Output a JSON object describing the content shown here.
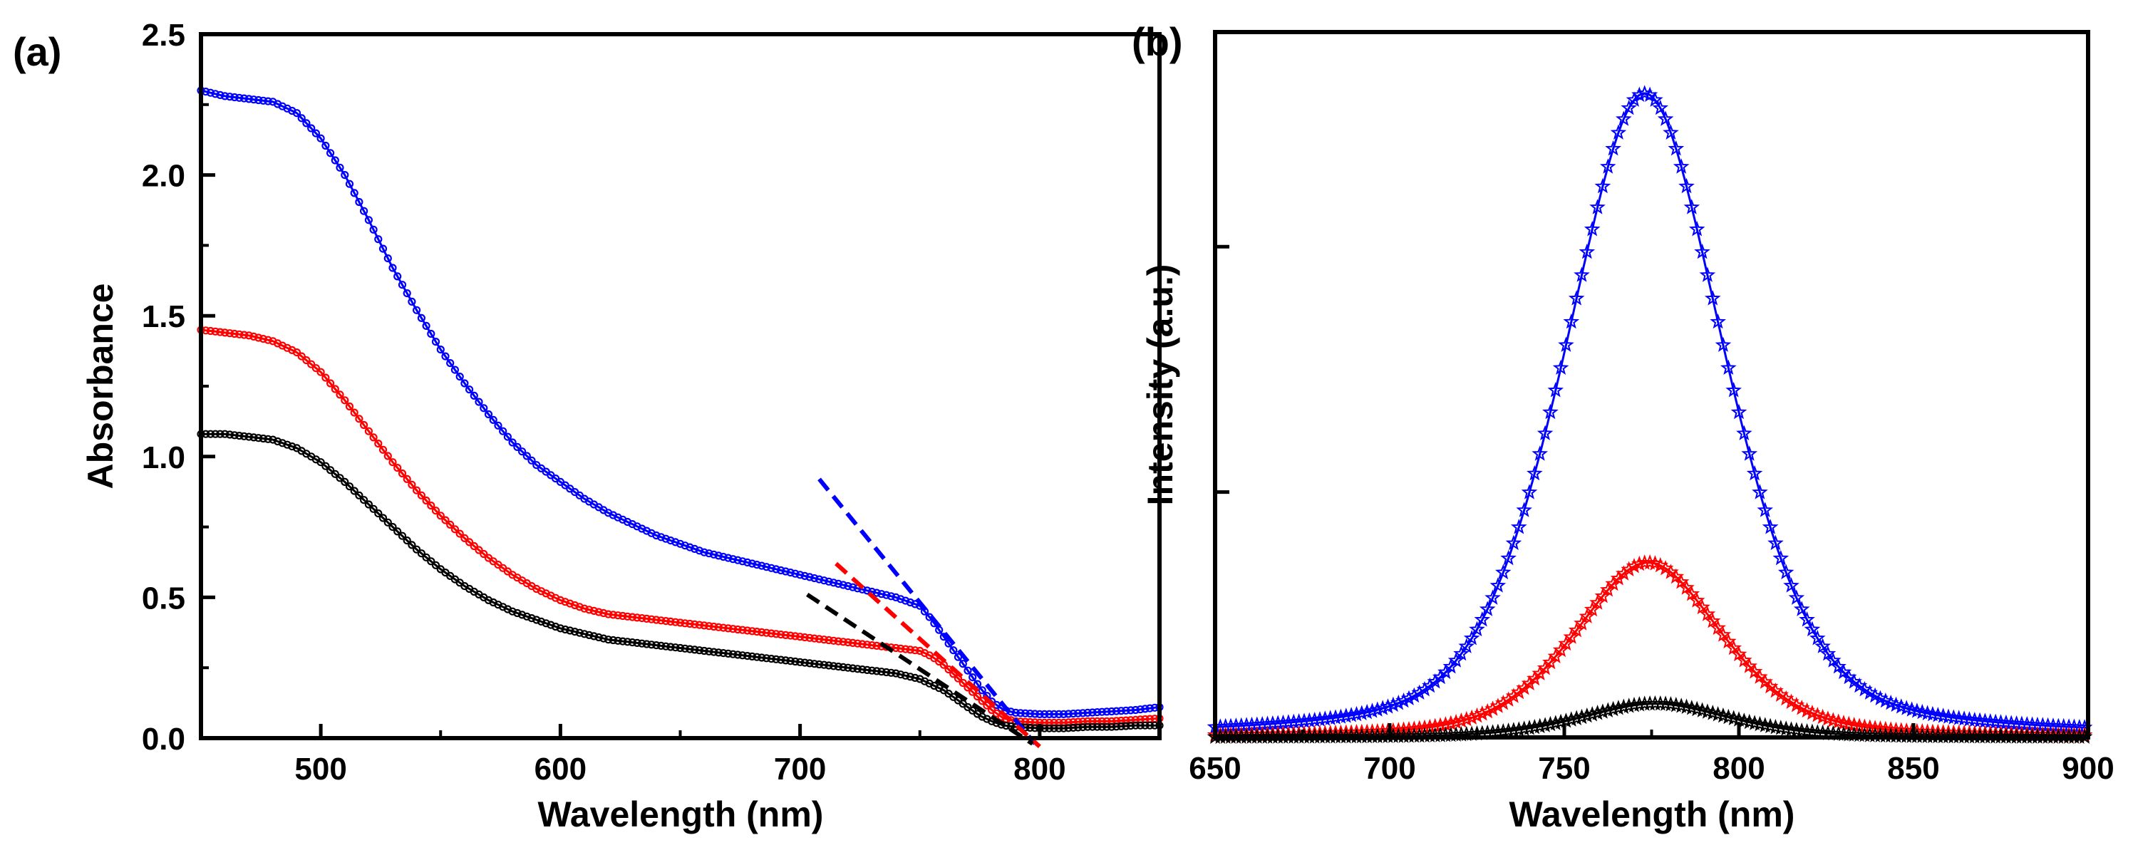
{
  "chart_data": [
    {
      "panel_label": "(a)",
      "type": "line",
      "xlabel": "Wavelength (nm)",
      "ylabel": "Absorbance",
      "xlim": [
        450,
        850
      ],
      "ylim": [
        0,
        2.5
      ],
      "xticks": [
        500,
        600,
        700,
        800
      ],
      "xtick_labels": [
        "500",
        "600",
        "700",
        "800"
      ],
      "yticks": [
        0,
        0.5,
        1.0,
        1.5,
        2.0,
        2.5
      ],
      "ytick_labels": [
        "0.0",
        "0.5",
        "1.0",
        "1.5",
        "2.0",
        "2.5"
      ],
      "grid": false,
      "series": [
        {
          "name": "blue",
          "color": "#0000ff",
          "marker": "circle",
          "x": [
            450,
            460,
            470,
            480,
            490,
            500,
            510,
            520,
            530,
            540,
            550,
            560,
            570,
            580,
            590,
            600,
            610,
            620,
            630,
            640,
            650,
            660,
            670,
            680,
            690,
            700,
            710,
            720,
            730,
            740,
            750,
            755,
            760,
            765,
            770,
            775,
            780,
            785,
            790,
            800,
            810,
            820,
            830,
            840,
            850
          ],
          "y": [
            2.3,
            2.28,
            2.27,
            2.26,
            2.22,
            2.13,
            2.0,
            1.84,
            1.67,
            1.52,
            1.38,
            1.26,
            1.15,
            1.05,
            0.97,
            0.91,
            0.85,
            0.8,
            0.76,
            0.72,
            0.69,
            0.66,
            0.64,
            0.62,
            0.6,
            0.58,
            0.56,
            0.54,
            0.52,
            0.5,
            0.47,
            0.42,
            0.36,
            0.3,
            0.24,
            0.18,
            0.13,
            0.1,
            0.09,
            0.085,
            0.085,
            0.09,
            0.095,
            0.1,
            0.11
          ]
        },
        {
          "name": "red",
          "color": "#ff0000",
          "marker": "circle",
          "x": [
            450,
            460,
            470,
            480,
            490,
            500,
            510,
            520,
            530,
            540,
            550,
            560,
            570,
            580,
            590,
            600,
            610,
            620,
            630,
            640,
            650,
            660,
            670,
            680,
            690,
            700,
            710,
            720,
            730,
            740,
            750,
            755,
            760,
            765,
            770,
            775,
            780,
            785,
            790,
            800,
            810,
            820,
            830,
            840,
            850
          ],
          "y": [
            1.45,
            1.44,
            1.43,
            1.41,
            1.37,
            1.3,
            1.2,
            1.09,
            0.98,
            0.88,
            0.79,
            0.71,
            0.64,
            0.58,
            0.53,
            0.49,
            0.46,
            0.44,
            0.43,
            0.42,
            0.41,
            0.4,
            0.39,
            0.38,
            0.37,
            0.36,
            0.35,
            0.34,
            0.33,
            0.32,
            0.31,
            0.29,
            0.26,
            0.22,
            0.18,
            0.14,
            0.1,
            0.07,
            0.06,
            0.055,
            0.055,
            0.06,
            0.06,
            0.065,
            0.07
          ]
        },
        {
          "name": "black",
          "color": "#000000",
          "marker": "circle",
          "x": [
            450,
            460,
            470,
            480,
            490,
            500,
            510,
            520,
            530,
            540,
            550,
            560,
            570,
            580,
            590,
            600,
            610,
            620,
            630,
            640,
            650,
            660,
            670,
            680,
            690,
            700,
            710,
            720,
            730,
            740,
            750,
            755,
            760,
            765,
            770,
            775,
            780,
            785,
            790,
            800,
            810,
            820,
            830,
            840,
            850
          ],
          "y": [
            1.08,
            1.08,
            1.07,
            1.06,
            1.03,
            0.98,
            0.91,
            0.83,
            0.75,
            0.67,
            0.6,
            0.54,
            0.49,
            0.45,
            0.42,
            0.39,
            0.37,
            0.35,
            0.34,
            0.33,
            0.32,
            0.31,
            0.3,
            0.29,
            0.28,
            0.27,
            0.26,
            0.25,
            0.24,
            0.23,
            0.21,
            0.19,
            0.17,
            0.14,
            0.11,
            0.08,
            0.06,
            0.045,
            0.04,
            0.035,
            0.035,
            0.04,
            0.04,
            0.045,
            0.045
          ]
        }
      ],
      "tangent_lines": [
        {
          "color": "#0000ff",
          "x": [
            708,
            798
          ],
          "y": [
            0.92,
            -0.02
          ]
        },
        {
          "color": "#ff0000",
          "x": [
            715,
            800
          ],
          "y": [
            0.62,
            -0.03
          ]
        },
        {
          "color": "#000000",
          "x": [
            703,
            797
          ],
          "y": [
            0.51,
            -0.02
          ]
        }
      ]
    },
    {
      "panel_label": "(b)",
      "type": "line",
      "xlabel": "Wavelength (nm)",
      "ylabel": "Intensity (a.u.)",
      "xlim": [
        650,
        900
      ],
      "ylim": [
        0,
        1.15
      ],
      "xticks": [
        650,
        700,
        750,
        800,
        850,
        900
      ],
      "xtick_labels": [
        "650",
        "700",
        "750",
        "800",
        "850",
        "900"
      ],
      "yticks": [
        0.4,
        0.8
      ],
      "ytick_labels": [
        "",
        ""
      ],
      "grid": false,
      "series": [
        {
          "name": "blue",
          "color": "#0000ff",
          "marker": "star",
          "peak_x": 773,
          "peak_y": 1.05,
          "width_sigma": 24
        },
        {
          "name": "red",
          "color": "#ff0000",
          "marker": "star",
          "peak_x": 774,
          "peak_y": 0.285,
          "width_sigma": 22
        },
        {
          "name": "black",
          "color": "#000000",
          "marker": "star",
          "peak_x": 776,
          "peak_y": 0.055,
          "width_sigma": 22
        }
      ]
    }
  ]
}
